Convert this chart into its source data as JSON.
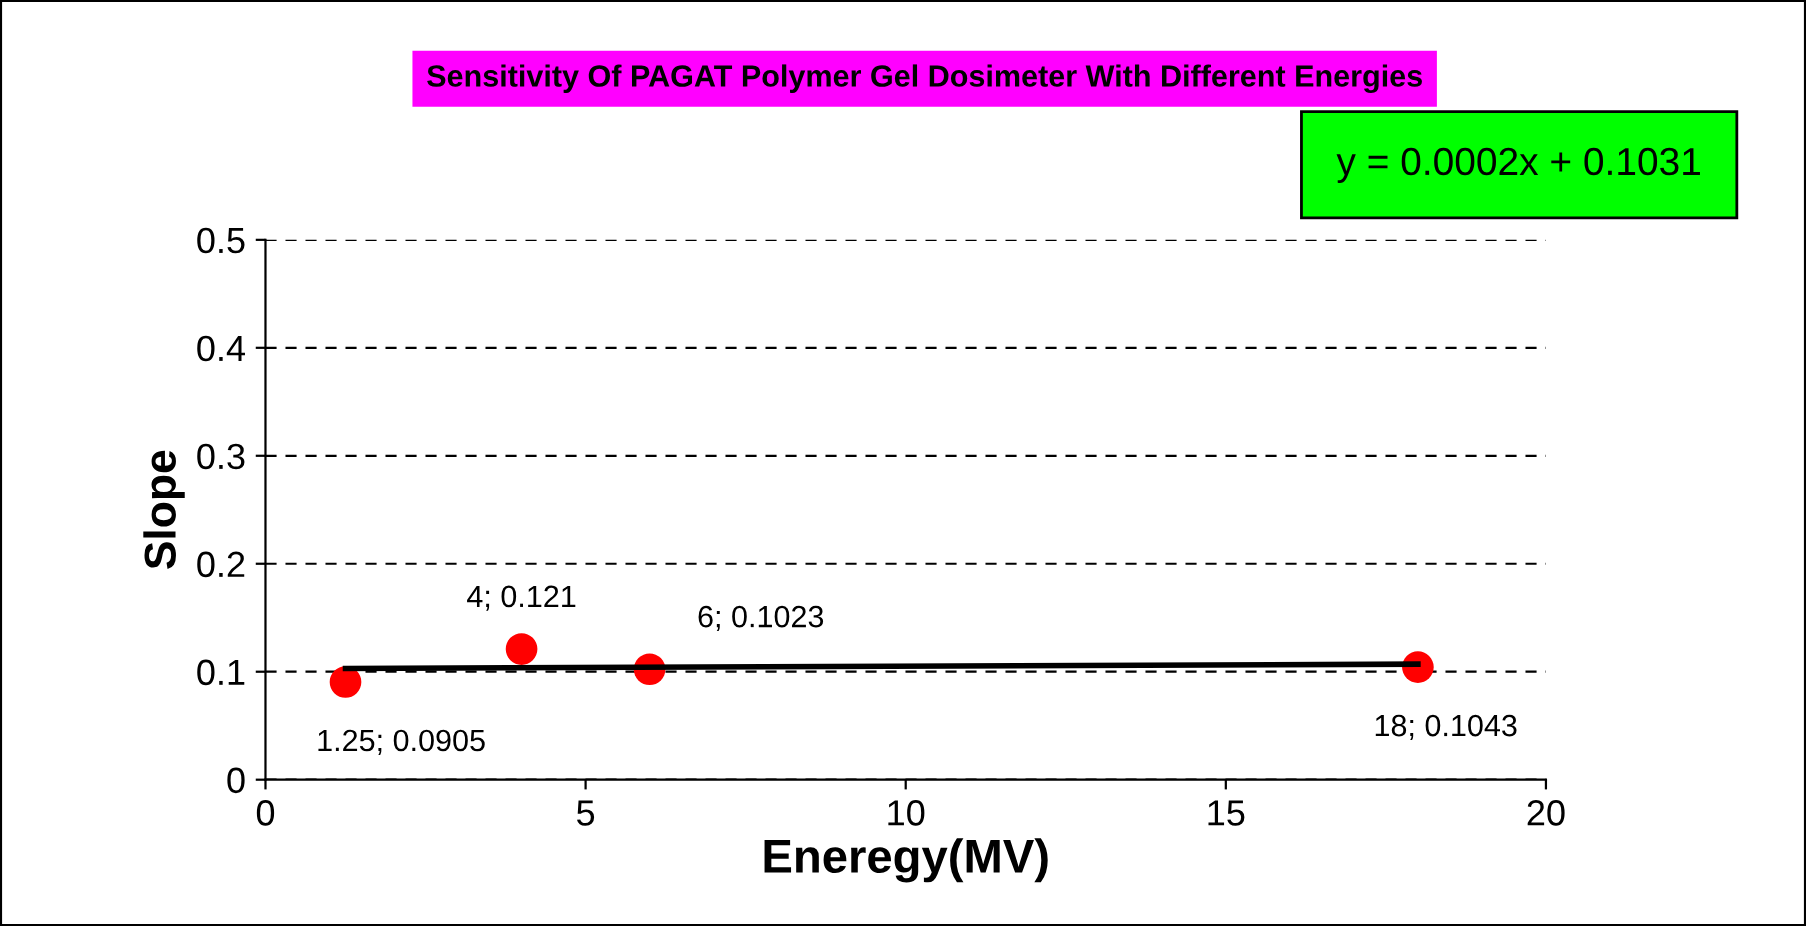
{
  "chart_data": {
    "type": "scatter",
    "title": "Sensitivity Of PAGAT Polymer Gel Dosimeter With Different Energies",
    "xlabel": "Eneregy(MV)",
    "ylabel": "Slope",
    "annotations": [
      "y = 0.0002x + 0.1031"
    ],
    "xlim": [
      0,
      20
    ],
    "xticks": [
      0,
      5,
      10,
      15,
      20
    ],
    "ylim": [
      0,
      0.5
    ],
    "yticks": [
      0,
      0.1,
      0.2,
      0.3,
      0.4,
      0.5
    ],
    "grid": "y",
    "legend": false,
    "series": [
      {
        "marker": "circle",
        "color": "#ff0000",
        "x": [
          1.25,
          4,
          6,
          18
        ],
        "values": [
          0.0905,
          0.121,
          0.1023,
          0.1043
        ],
        "value_labels": [
          "1.25; 0.0905",
          "4; 0.121",
          "6; 0.1023",
          "18; 0.1043"
        ]
      },
      {
        "type": "line",
        "color": "#000000",
        "line_style": "solid",
        "x": [
          1.25,
          18
        ],
        "values": [
          0.103,
          0.107
        ]
      }
    ]
  }
}
